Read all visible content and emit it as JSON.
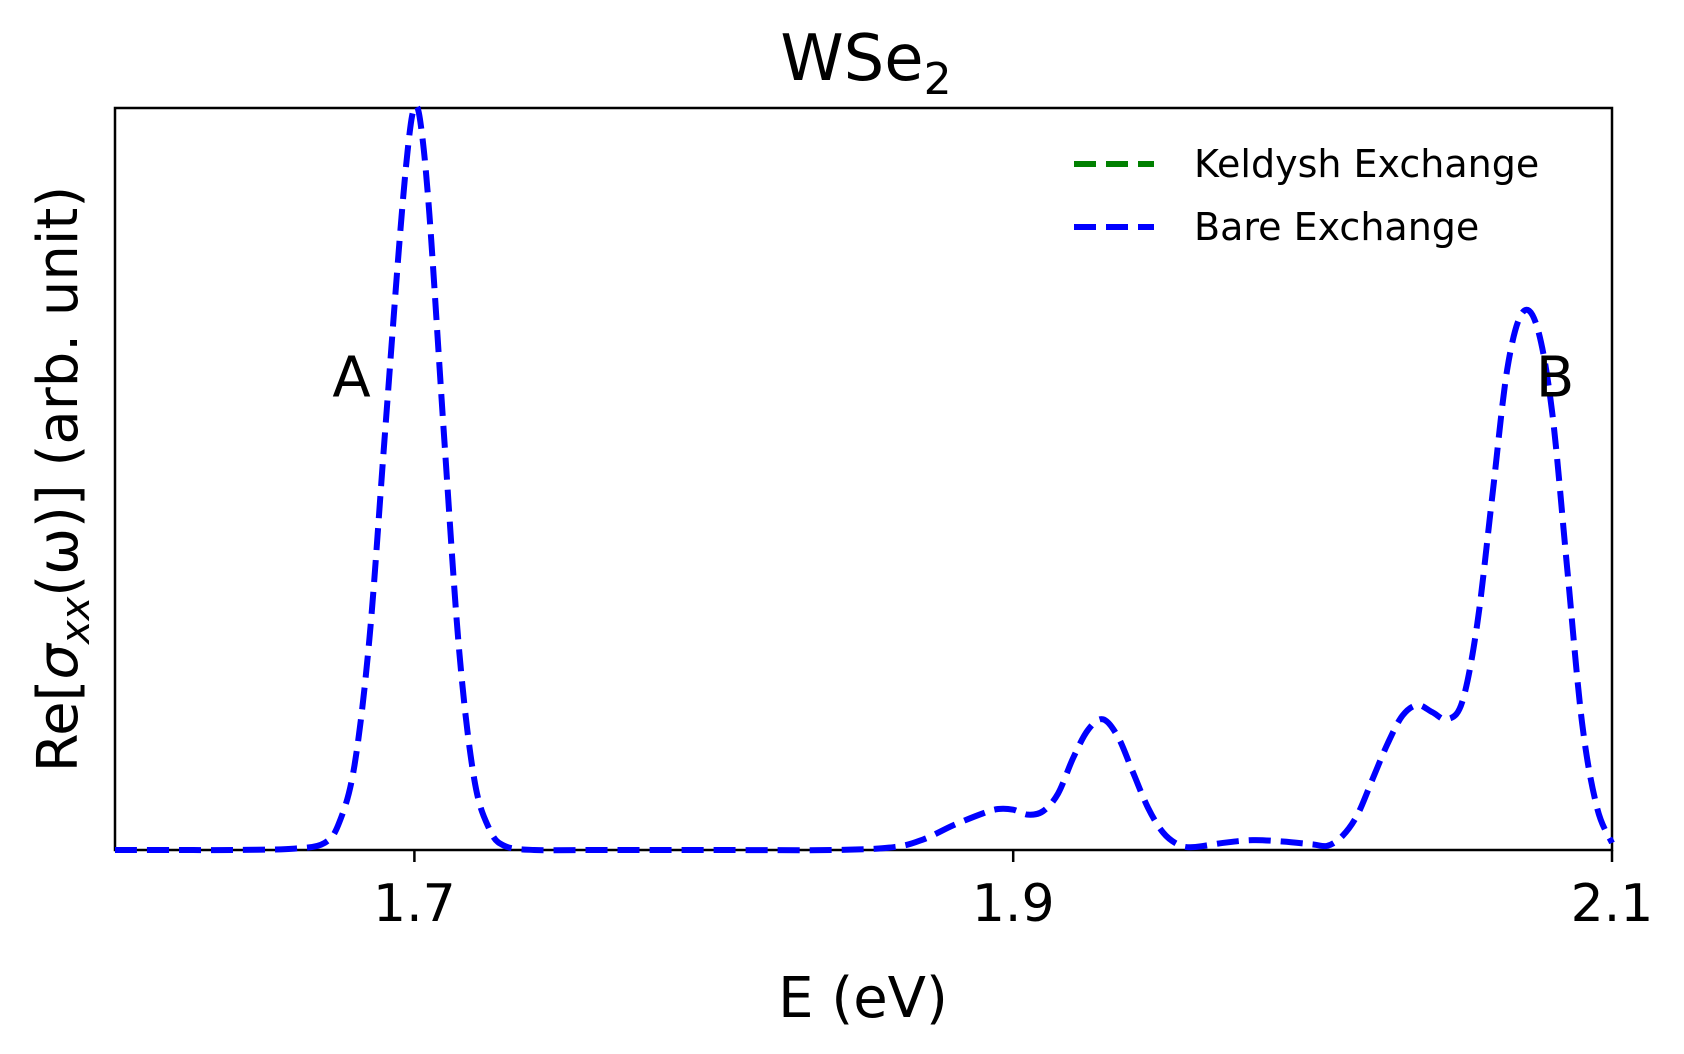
{
  "chart_data": {
    "type": "line",
    "title": "WSe",
    "title_subscript": "2",
    "xlabel": "E (eV)",
    "ylabel": {
      "prefix": "Re[",
      "symbol": "σ",
      "subscript": "xx",
      "suffix": "(ω)] (arb. unit)"
    },
    "xlim": [
      1.6,
      2.1
    ],
    "ylim": [
      0,
      1.05
    ],
    "xticks": [
      1.7,
      1.9,
      2.1
    ],
    "xtick_labels": [
      "1.7",
      "1.9",
      "2.1"
    ],
    "yticks_shown": false,
    "grid": false,
    "legend_position": "top-right",
    "annotations": [
      {
        "text": "A",
        "x": 1.679,
        "y": 0.67
      },
      {
        "text": "B",
        "x": 2.081,
        "y": 0.67
      }
    ],
    "series": [
      {
        "name": "Keldysh Exchange",
        "color": "#008000",
        "style": "dashed",
        "x": [],
        "y": []
      },
      {
        "name": "Bare Exchange",
        "color": "#0000ff",
        "style": "dashed",
        "x": [
          1.6,
          1.62,
          1.64,
          1.66,
          1.67,
          1.675,
          1.68,
          1.685,
          1.69,
          1.695,
          1.698,
          1.7,
          1.702,
          1.705,
          1.71,
          1.715,
          1.72,
          1.725,
          1.73,
          1.74,
          1.76,
          1.8,
          1.84,
          1.86,
          1.87,
          1.88,
          1.89,
          1.895,
          1.9,
          1.905,
          1.91,
          1.915,
          1.92,
          1.925,
          1.93,
          1.935,
          1.94,
          1.945,
          1.95,
          1.955,
          1.96,
          1.97,
          1.98,
          1.99,
          2.0,
          2.005,
          2.01,
          2.015,
          2.02,
          2.025,
          2.03,
          2.035,
          2.04,
          2.045,
          2.05,
          2.055,
          2.06,
          2.065,
          2.07,
          2.075,
          2.08,
          2.085,
          2.09,
          2.095,
          2.1
        ],
        "y": [
          0.0,
          0.0,
          0.0,
          0.002,
          0.01,
          0.04,
          0.12,
          0.3,
          0.58,
          0.86,
          1.0,
          1.05,
          1.03,
          0.9,
          0.58,
          0.28,
          0.1,
          0.03,
          0.006,
          0.0,
          0.0,
          0.0,
          0.0,
          0.004,
          0.015,
          0.035,
          0.052,
          0.058,
          0.057,
          0.05,
          0.055,
          0.08,
          0.13,
          0.17,
          0.185,
          0.16,
          0.11,
          0.06,
          0.025,
          0.008,
          0.004,
          0.01,
          0.014,
          0.012,
          0.008,
          0.006,
          0.02,
          0.05,
          0.1,
          0.15,
          0.19,
          0.205,
          0.195,
          0.185,
          0.21,
          0.32,
          0.5,
          0.68,
          0.76,
          0.74,
          0.62,
          0.4,
          0.18,
          0.06,
          0.01
        ]
      }
    ]
  }
}
